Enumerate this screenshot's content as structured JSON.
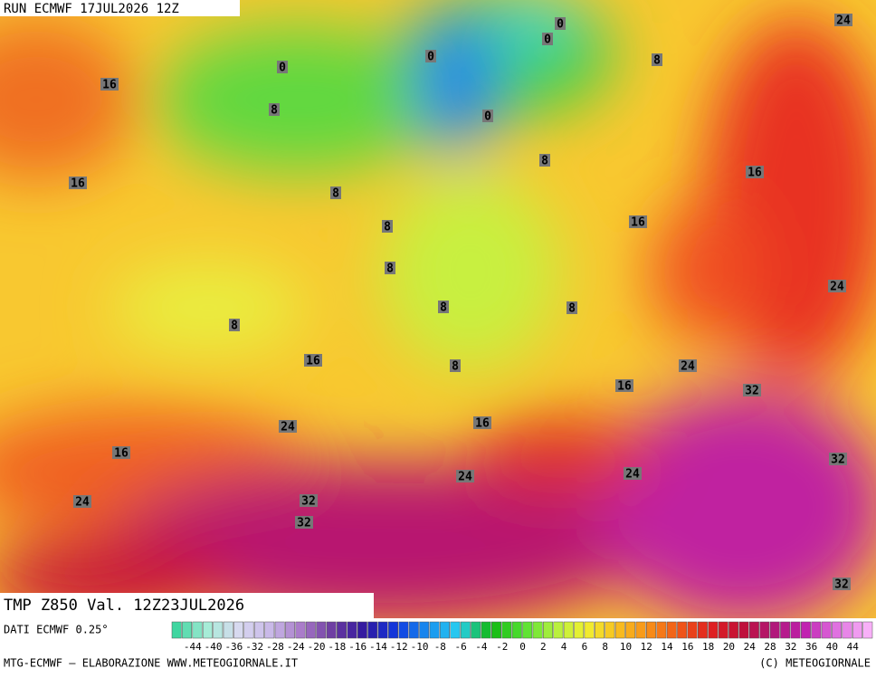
{
  "header": {
    "run": "RUN ECMWF 17JUL2026 12Z",
    "field": "TMP Z850 Val. 12Z23JUL2026",
    "source": "DATI ECMWF 0.25°",
    "footer_left": "MTG-ECMWF – ELABORAZIONE WWW.METEOGIORNALE.IT",
    "footer_right": "(C) METEOGIORNALE"
  },
  "map": {
    "labels": [
      "0",
      "0",
      "0",
      "0",
      "0",
      "8",
      "24",
      "16",
      "8",
      "8",
      "16",
      "16",
      "8",
      "8",
      "16",
      "8",
      "24",
      "8",
      "8",
      "8",
      "16",
      "8",
      "24",
      "16",
      "32",
      "24",
      "16",
      "16",
      "32",
      "24",
      "24",
      "24",
      "32",
      "32",
      "32"
    ]
  },
  "colorbar": {
    "labels": [
      "-44",
      "-40",
      "-36",
      "-32",
      "-28",
      "-24",
      "-20",
      "-18",
      "-16",
      "-14",
      "-12",
      "-10",
      "-8",
      "-6",
      "-4",
      "-2",
      "0",
      "2",
      "4",
      "6",
      "8",
      "10",
      "12",
      "14",
      "16",
      "18",
      "20",
      "24",
      "28",
      "32",
      "36",
      "40",
      "44"
    ],
    "colors": [
      "#3fd6a0",
      "#a8ecd8",
      "#d8d8f0",
      "#c8b8e8",
      "#a878c8",
      "#6a3aa0",
      "#3018a0",
      "#1038e0",
      "#1890f0",
      "#28d0f0",
      "#10b810",
      "#50e030",
      "#b0f040",
      "#f0f030",
      "#f8c020",
      "#f89018",
      "#f05818",
      "#e02020",
      "#c01038",
      "#b01878",
      "#c020b0",
      "#e070e0",
      "#f8b0f8"
    ]
  }
}
